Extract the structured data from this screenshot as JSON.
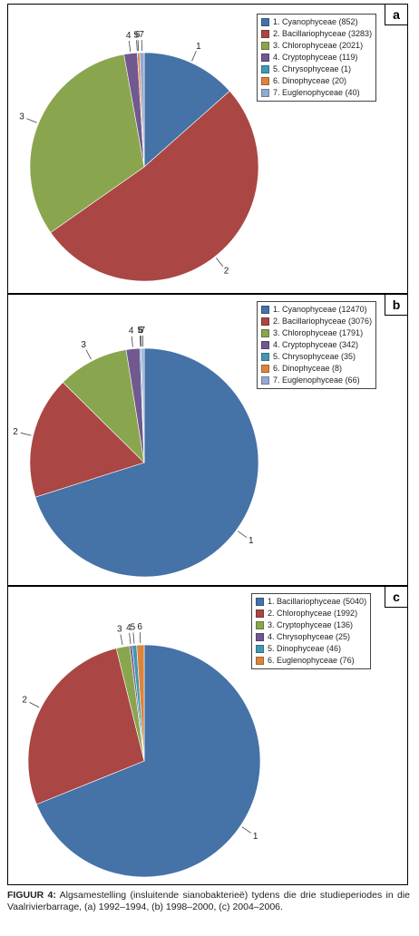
{
  "colors": {
    "blue": "#4572a7",
    "red": "#aa4643",
    "green": "#89a54e",
    "purple": "#71588f",
    "teal": "#4198af",
    "orange": "#db843d",
    "lightblue": "#93a9cf"
  },
  "chart_data": [
    {
      "panel": "a",
      "type": "pie",
      "slices": [
        {
          "label": "1",
          "legend": "1. Cyanophyceae (852)",
          "value": 852,
          "color": "#4572a7"
        },
        {
          "label": "2",
          "legend": "2. Bacillariophyceae (3283)",
          "value": 3283,
          "color": "#aa4643"
        },
        {
          "label": "3",
          "legend": "3. Chlorophyceae (2021)",
          "value": 2021,
          "color": "#89a54e"
        },
        {
          "label": "4",
          "legend": "4. Cryptophyceae (119)",
          "value": 119,
          "color": "#71588f"
        },
        {
          "label": "5",
          "legend": "5. Chrysophyceae (1)",
          "value": 1,
          "color": "#4198af"
        },
        {
          "label": "6",
          "legend": "6. Dinophyceae (20)",
          "value": 20,
          "color": "#db843d"
        },
        {
          "label": "7",
          "legend": "7. Euglenophyceae (40)",
          "value": 40,
          "color": "#93a9cf"
        }
      ]
    },
    {
      "panel": "b",
      "type": "pie",
      "slices": [
        {
          "label": "1",
          "legend": "1. Cyanophyceae (12470)",
          "value": 12470,
          "color": "#4572a7"
        },
        {
          "label": "2",
          "legend": "2. Bacillariophyceae (3076)",
          "value": 3076,
          "color": "#aa4643"
        },
        {
          "label": "3",
          "legend": "3. Chlorophyceae (1791)",
          "value": 1791,
          "color": "#89a54e"
        },
        {
          "label": "4",
          "legend": "4. Cryptophyceae (342)",
          "value": 342,
          "color": "#71588f"
        },
        {
          "label": "5",
          "legend": "5. Chrysophyceae (35)",
          "value": 35,
          "color": "#4198af"
        },
        {
          "label": "6",
          "legend": "6. Dinophyceae (8)",
          "value": 8,
          "color": "#db843d"
        },
        {
          "label": "7",
          "legend": "7. Euglenophyceae (66)",
          "value": 66,
          "color": "#93a9cf"
        }
      ]
    },
    {
      "panel": "c",
      "type": "pie",
      "slices": [
        {
          "label": "1",
          "legend": "1. Bacillariophyceae (5040)",
          "value": 5040,
          "color": "#4572a7"
        },
        {
          "label": "2",
          "legend": "2. Chlorophyceae (1992)",
          "value": 1992,
          "color": "#aa4643"
        },
        {
          "label": "3",
          "legend": "3. Cryptophyceae (136)",
          "value": 136,
          "color": "#89a54e"
        },
        {
          "label": "4",
          "legend": "4. Chrysophyceae (25)",
          "value": 25,
          "color": "#71588f"
        },
        {
          "label": "5",
          "legend": "5. Dinophyceae (46)",
          "value": 46,
          "color": "#4198af"
        },
        {
          "label": "6",
          "legend": "6. Euglenophyceae (76)",
          "value": 76,
          "color": "#db843d"
        }
      ]
    }
  ],
  "caption": {
    "label": "FIGUUR 4:",
    "text": " Algsamestelling (insluitende sianobakterieë) tydens die drie studieperiodes in die Vaalrivierbarrage, (a) 1992–1994, (b) 1998–2000, (c) 2004–2006."
  }
}
